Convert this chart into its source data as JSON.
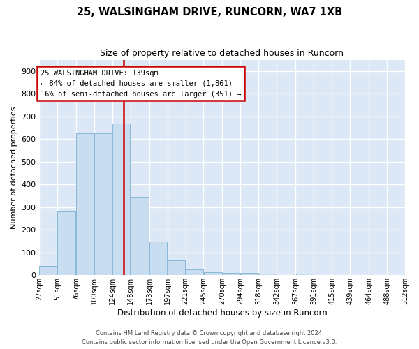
{
  "title": "25, WALSINGHAM DRIVE, RUNCORN, WA7 1XB",
  "subtitle": "Size of property relative to detached houses in Runcorn",
  "xlabel": "Distribution of detached houses by size in Runcorn",
  "ylabel": "Number of detached properties",
  "bar_color": "#c9ddf0",
  "bar_edge_color": "#7aafd4",
  "background_color": "#dce8f5",
  "grid_color": "#ffffff",
  "vline_color": "#cc0000",
  "vline_x": 139,
  "annotation_text": "25 WALSINGHAM DRIVE: 139sqm\n← 84% of detached houses are smaller (1,861)\n16% of semi-detached houses are larger (351) →",
  "annotation_box_edgecolor": "#cc0000",
  "bin_edges": [
    27,
    51,
    76,
    100,
    124,
    148,
    173,
    197,
    221,
    245,
    270,
    294,
    318,
    342,
    367,
    391,
    415,
    439,
    464,
    488,
    512
  ],
  "bin_labels": [
    "27sqm",
    "51sqm",
    "76sqm",
    "100sqm",
    "124sqm",
    "148sqm",
    "173sqm",
    "197sqm",
    "221sqm",
    "245sqm",
    "270sqm",
    "294sqm",
    "318sqm",
    "342sqm",
    "367sqm",
    "391sqm",
    "415sqm",
    "439sqm",
    "464sqm",
    "488sqm",
    "512sqm"
  ],
  "heights": [
    40,
    280,
    625,
    625,
    670,
    345,
    150,
    67,
    27,
    13,
    10,
    10,
    8,
    0,
    8,
    0,
    0,
    0,
    0,
    0
  ],
  "ylim": [
    0,
    950
  ],
  "yticks": [
    0,
    100,
    200,
    300,
    400,
    500,
    600,
    700,
    800,
    900
  ],
  "footer1": "Contains HM Land Registry data © Crown copyright and database right 2024.",
  "footer2": "Contains public sector information licensed under the Open Government Licence v3.0."
}
